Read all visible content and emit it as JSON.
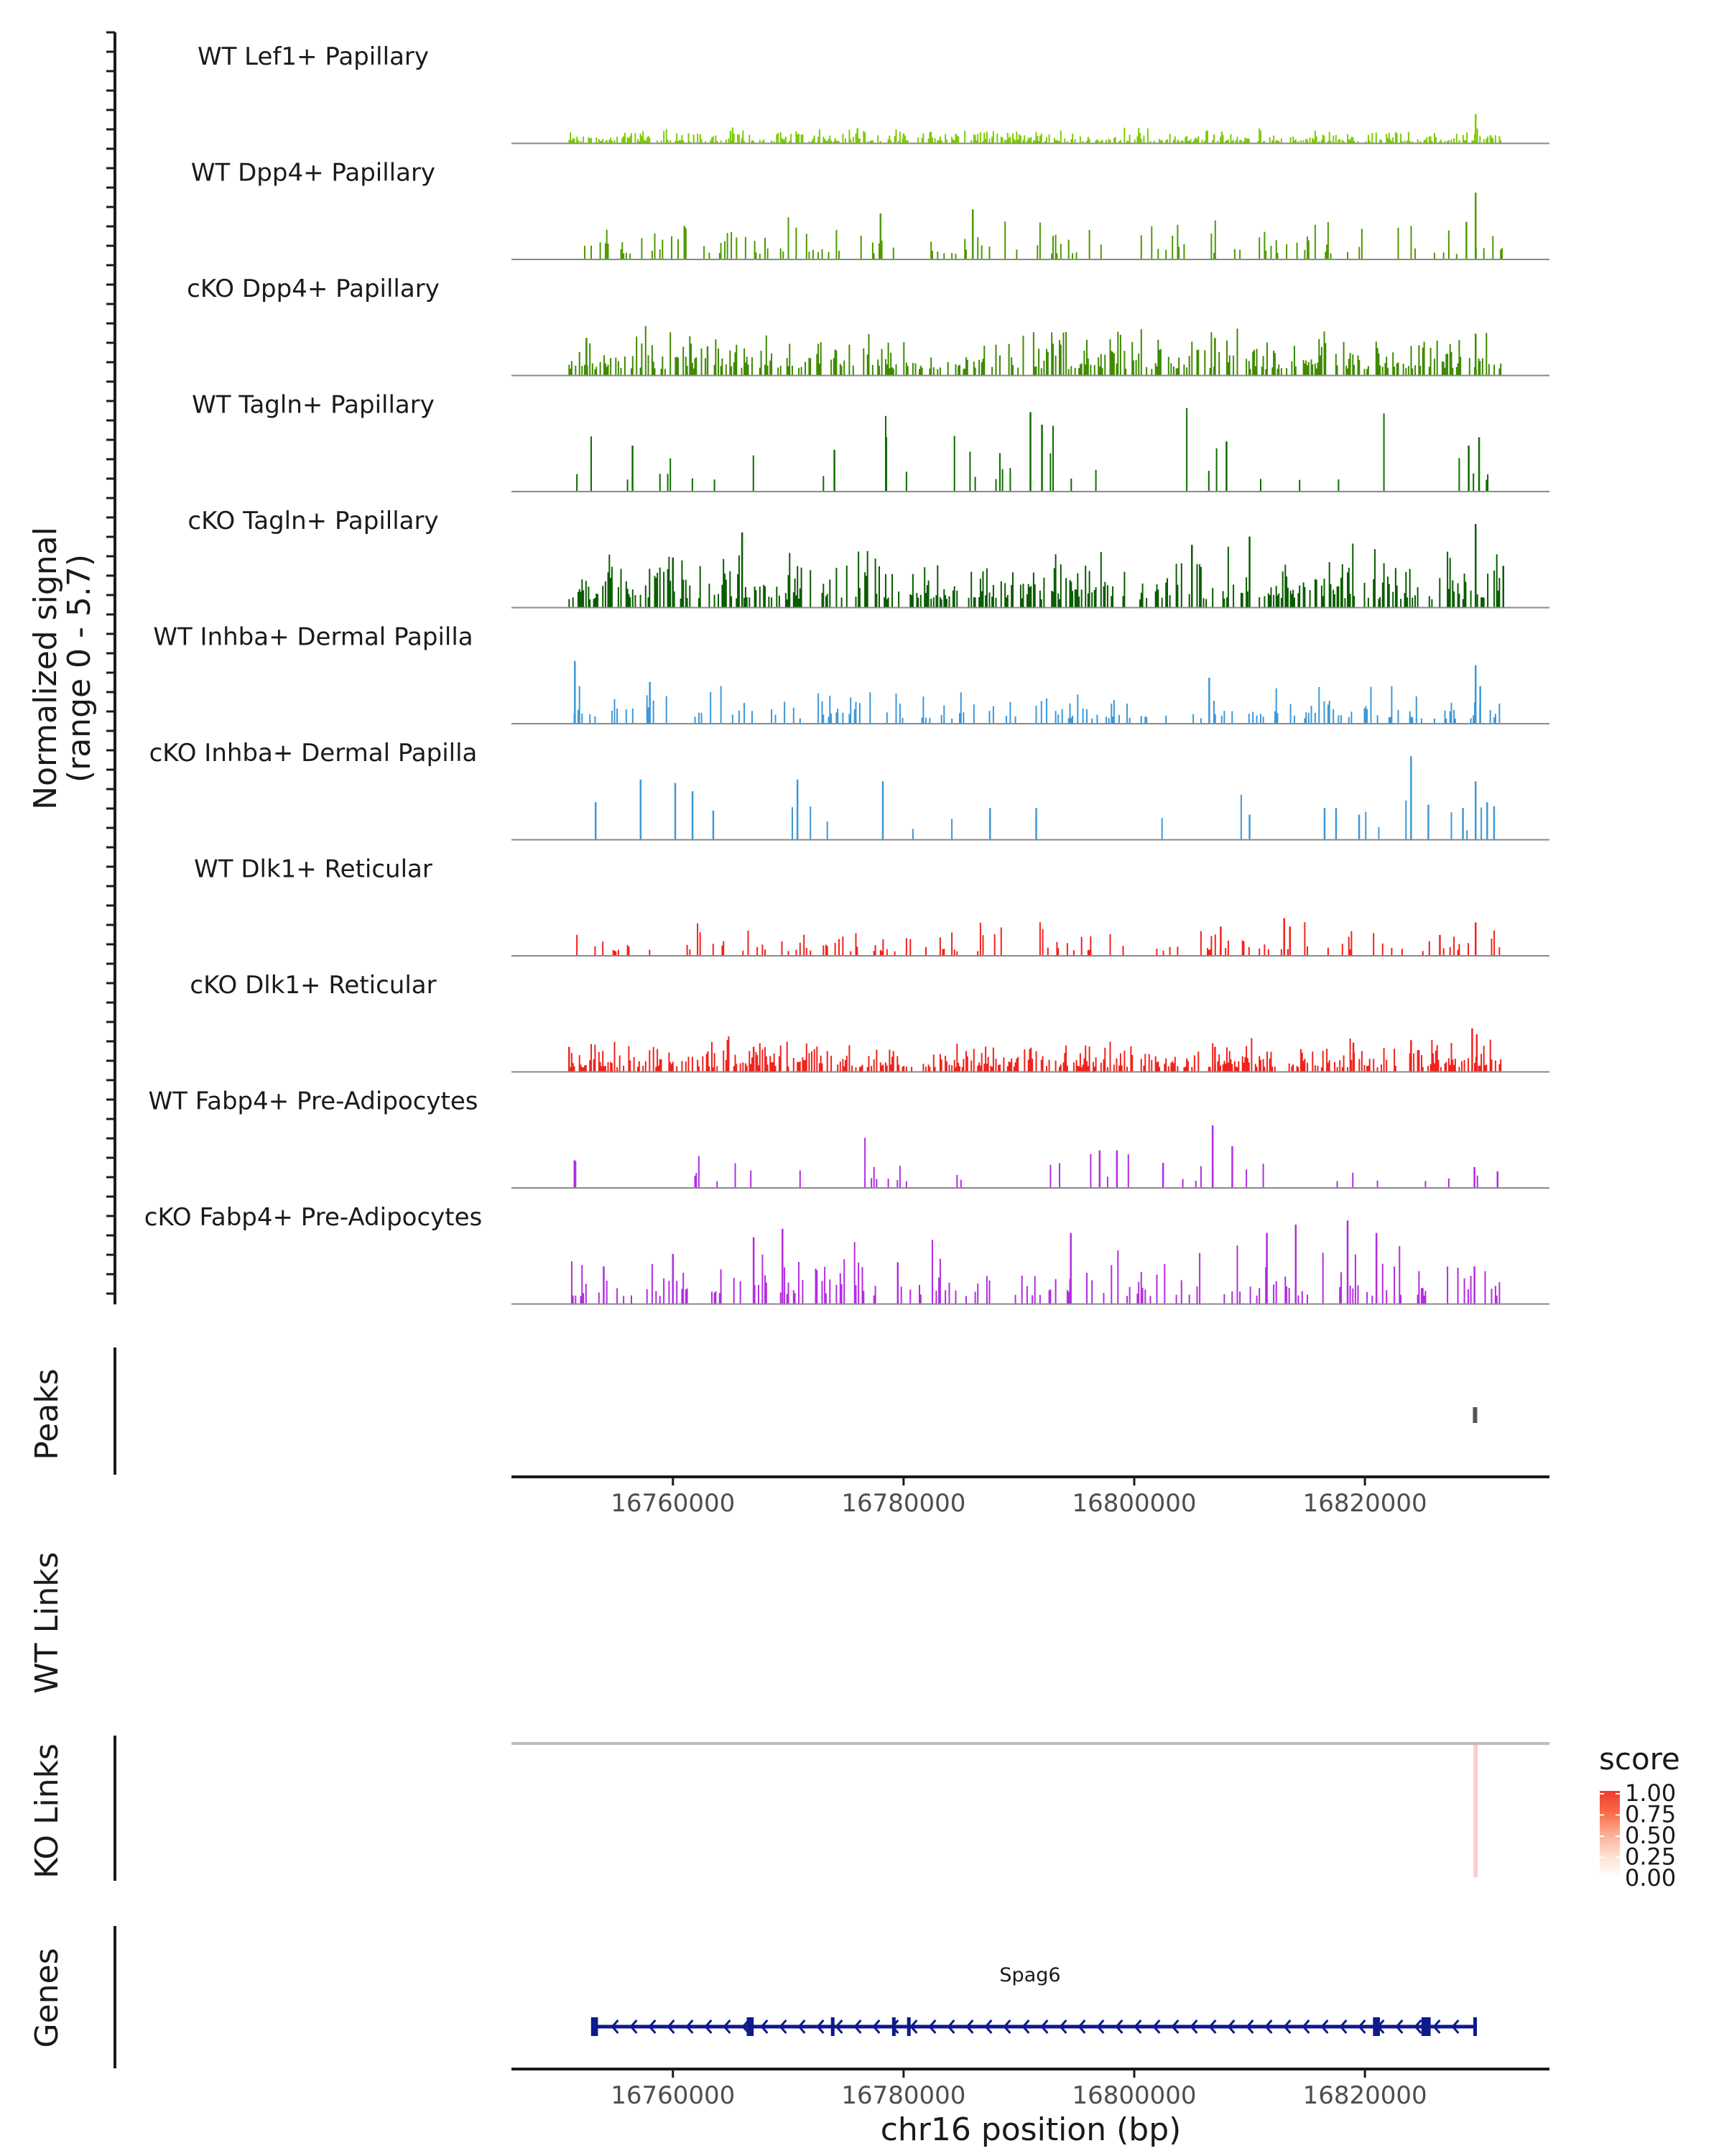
{
  "chart_data": {
    "type": "genome-browser-coverage",
    "region": {
      "chromosome": "chr16",
      "start": 16746000,
      "end": 16836000
    },
    "signal_axis_title": [
      "Normalized signal",
      "(range 0 - 5.7)"
    ],
    "signal_range": [
      0,
      5.7
    ],
    "tracks": [
      {
        "name": "WT Lef1+ Papillary",
        "color": "#7ccd00",
        "seed": 11,
        "density": 0.55,
        "mean_height": 0.08,
        "peaks": [
          [
            16765000,
            0.15
          ],
          [
            16776000,
            0.18
          ],
          [
            16829600,
            0.35
          ],
          [
            16780000,
            0.12
          ]
        ]
      },
      {
        "name": "WT Dpp4+ Papillary",
        "color": "#4f9a00",
        "seed": 23,
        "density": 0.14,
        "mean_height": 0.22,
        "peaks": [
          [
            16761000,
            0.4
          ],
          [
            16778000,
            0.55
          ],
          [
            16786000,
            0.6
          ],
          [
            16829600,
            0.8
          ],
          [
            16828800,
            0.45
          ]
        ]
      },
      {
        "name": "cKO Dpp4+ Papillary",
        "color": "#3f8a00",
        "seed": 37,
        "density": 0.45,
        "mean_height": 0.25,
        "peaks": [
          [
            16752500,
            0.45
          ],
          [
            16763000,
            0.35
          ],
          [
            16807000,
            0.45
          ],
          [
            16829600,
            0.5
          ]
        ]
      },
      {
        "name": "WT Tagln+ Papillary",
        "color": "#0f6d00",
        "seed": 41,
        "density": 0.06,
        "mean_height": 0.45,
        "peaks": [
          [
            16756500,
            0.55
          ],
          [
            16774000,
            0.5
          ],
          [
            16778500,
            0.65
          ],
          [
            16791000,
            0.95
          ],
          [
            16792000,
            0.8
          ],
          [
            16808000,
            0.6
          ],
          [
            16829000,
            0.55
          ],
          [
            16829900,
            0.65
          ]
        ]
      },
      {
        "name": "cKO Tagln+ Papillary",
        "color": "#0a5c00",
        "seed": 53,
        "density": 0.4,
        "mean_height": 0.32,
        "peaks": [
          [
            16760000,
            0.6
          ],
          [
            16766000,
            0.9
          ],
          [
            16805000,
            0.75
          ],
          [
            16810000,
            0.85
          ],
          [
            16829600,
            1.0
          ],
          [
            16832000,
            0.5
          ]
        ]
      },
      {
        "name": "WT Inhba+ Dermal Papilla",
        "color": "#3d98d8",
        "seed": 61,
        "density": 0.22,
        "mean_height": 0.2,
        "peaks": [
          [
            16751500,
            0.75
          ],
          [
            16758000,
            0.5
          ],
          [
            16806500,
            0.55
          ],
          [
            16829600,
            0.7
          ],
          [
            16830000,
            0.45
          ]
        ]
      },
      {
        "name": "cKO Inhba+ Dermal Papilla",
        "color": "#3d98d8",
        "seed": 73,
        "density": 0.02,
        "mean_height": 0.35,
        "peaks": [
          [
            16753300,
            0.45
          ],
          [
            16757200,
            0.72
          ],
          [
            16760200,
            0.68
          ],
          [
            16761700,
            0.58
          ],
          [
            16763500,
            0.35
          ],
          [
            16770800,
            0.72
          ],
          [
            16778200,
            0.7
          ],
          [
            16787500,
            0.38
          ],
          [
            16791500,
            0.38
          ],
          [
            16810000,
            0.3
          ],
          [
            16816500,
            0.38
          ],
          [
            16817500,
            0.38
          ],
          [
            16819500,
            0.3
          ],
          [
            16824000,
            1.0
          ],
          [
            16825500,
            0.42
          ],
          [
            16828500,
            0.38
          ],
          [
            16829600,
            0.7
          ],
          [
            16830600,
            0.45
          ],
          [
            16831200,
            0.4
          ]
        ]
      },
      {
        "name": "WT Dlk1+ Reticular",
        "color": "#f0231d",
        "seed": 83,
        "density": 0.16,
        "mean_height": 0.18,
        "peaks": [
          [
            16807500,
            0.35
          ],
          [
            16813000,
            0.45
          ],
          [
            16813500,
            0.35
          ],
          [
            16826500,
            0.25
          ],
          [
            16829600,
            0.4
          ]
        ]
      },
      {
        "name": "cKO Dlk1+ Reticular",
        "color": "#f0231d",
        "seed": 97,
        "density": 0.55,
        "mean_height": 0.18,
        "peaks": [
          [
            16751000,
            0.3
          ],
          [
            16767000,
            0.3
          ],
          [
            16807000,
            0.3
          ],
          [
            16819000,
            0.35
          ],
          [
            16824000,
            0.38
          ],
          [
            16829300,
            0.52
          ],
          [
            16829700,
            0.45
          ]
        ]
      },
      {
        "name": "WT Fabp4+ Pre-Adipocytes",
        "color": "#b22de0",
        "seed": 103,
        "density": 0.07,
        "mean_height": 0.25,
        "peaks": [
          [
            16797000,
            0.45
          ],
          [
            16798500,
            0.45
          ],
          [
            16802500,
            0.3
          ],
          [
            16806800,
            0.75
          ],
          [
            16808500,
            0.5
          ],
          [
            16829500,
            0.25
          ],
          [
            16831500,
            0.2
          ]
        ]
      },
      {
        "name": "cKO Fabp4+ Pre-Adipocytes",
        "color": "#b22de0",
        "seed": 113,
        "density": 0.22,
        "mean_height": 0.32,
        "peaks": [
          [
            16754000,
            0.45
          ],
          [
            16760000,
            0.6
          ],
          [
            16767000,
            0.8
          ],
          [
            16769500,
            0.9
          ],
          [
            16779500,
            0.5
          ],
          [
            16794500,
            0.85
          ],
          [
            16811500,
            0.85
          ],
          [
            16814000,
            0.95
          ],
          [
            16818500,
            1.0
          ],
          [
            16821000,
            0.85
          ],
          [
            16829500,
            0.45
          ]
        ]
      }
    ],
    "peaks_track": {
      "title": "Peaks",
      "features": [
        {
          "start": 16829200,
          "end": 16829900
        }
      ]
    },
    "wt_links": {
      "title": "WT Links",
      "links": []
    },
    "ko_links": {
      "title": "KO Links",
      "links": [
        {
          "position": 16829600,
          "score": 0.25
        }
      ]
    },
    "genes_track": {
      "title": "Genes",
      "genes": [
        {
          "name": "Spag6",
          "start": 16753000,
          "end": 16829600,
          "strand": "-",
          "exons": [
            [
              16752900,
              16753500
            ],
            [
              16766400,
              16767000
            ],
            [
              16773700,
              16773900
            ],
            [
              16779000,
              16779150
            ],
            [
              16780300,
              16780450
            ],
            [
              16820700,
              16821300
            ],
            [
              16824900,
              16825700
            ],
            [
              16829400,
              16829600
            ]
          ]
        }
      ]
    },
    "x_axis": {
      "label": "chr16 position (bp)",
      "ticks": [
        16760000,
        16780000,
        16800000,
        16820000
      ],
      "tick_labels": [
        "16760000",
        "16780000",
        "16800000",
        "16820000"
      ]
    },
    "legend": {
      "title": "score",
      "labels": [
        "1.00",
        "0.75",
        "0.50",
        "0.25",
        "0.00"
      ],
      "colors": [
        "#ffffff",
        "#ef3b2c"
      ]
    }
  }
}
